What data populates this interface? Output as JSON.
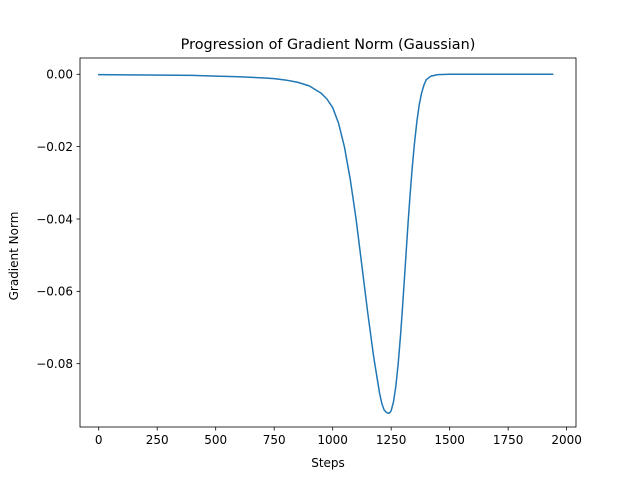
{
  "chart_data": {
    "type": "line",
    "title": "Progression of Gradient Norm (Gaussian)",
    "xlabel": "Steps",
    "ylabel": "Gradient Norm",
    "xlim": [
      -80,
      2040
    ],
    "ylim": [
      -0.0975,
      0.0045
    ],
    "grid": false,
    "legend": "none",
    "x_ticks": [
      0,
      250,
      500,
      750,
      1000,
      1250,
      1500,
      1750,
      2000
    ],
    "x_tick_labels": [
      "0",
      "250",
      "500",
      "750",
      "1000",
      "1250",
      "1500",
      "1750",
      "2000"
    ],
    "y_ticks": [
      0.0,
      -0.02,
      -0.04,
      -0.06,
      -0.08
    ],
    "y_tick_labels": [
      "0.00",
      "−0.02",
      "−0.04",
      "−0.06",
      "−0.08"
    ],
    "series": [
      {
        "color": "#1f77b4",
        "x": [
          0,
          200,
          400,
          500,
          600,
          700,
          750,
          800,
          850,
          900,
          950,
          975,
          1000,
          1025,
          1050,
          1075,
          1100,
          1125,
          1150,
          1175,
          1200,
          1210,
          1220,
          1230,
          1240,
          1245,
          1250,
          1260,
          1270,
          1280,
          1290,
          1300,
          1310,
          1320,
          1330,
          1340,
          1350,
          1360,
          1370,
          1380,
          1390,
          1400,
          1420,
          1450,
          1500,
          1600,
          1800,
          1940
        ],
        "y": [
          -0.0001,
          -0.0002,
          -0.0003,
          -0.0005,
          -0.0007,
          -0.001,
          -0.0012,
          -0.0016,
          -0.0022,
          -0.0032,
          -0.0052,
          -0.0068,
          -0.0092,
          -0.0135,
          -0.02,
          -0.029,
          -0.04,
          -0.053,
          -0.066,
          -0.078,
          -0.088,
          -0.091,
          -0.0928,
          -0.0935,
          -0.0937,
          -0.0935,
          -0.093,
          -0.0905,
          -0.0862,
          -0.08,
          -0.0722,
          -0.063,
          -0.0532,
          -0.0432,
          -0.034,
          -0.0258,
          -0.0188,
          -0.013,
          -0.0084,
          -0.0052,
          -0.003,
          -0.0015,
          -0.0005,
          -0.0001,
          0.0,
          0.0,
          0.0,
          0.0
        ]
      }
    ]
  }
}
